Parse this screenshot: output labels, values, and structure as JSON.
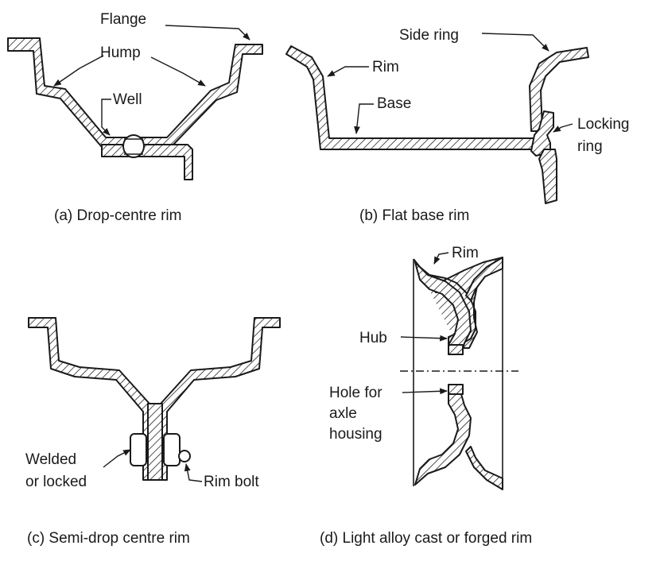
{
  "panels": {
    "a": {
      "caption": "(a) Drop-centre rim",
      "labels": {
        "flange": "Flange",
        "hump": "Hump",
        "well": "Well"
      }
    },
    "b": {
      "caption": "(b) Flat base rim",
      "labels": {
        "side_ring": "Side ring",
        "rim": "Rim",
        "base": "Base",
        "locking_1": "Locking",
        "locking_2": "ring"
      }
    },
    "c": {
      "caption": "(c) Semi-drop centre rim",
      "labels": {
        "welded": "Welded",
        "or_locked": "or locked",
        "rim_bolt": "Rim bolt"
      }
    },
    "d": {
      "caption": "(d) Light alloy cast or forged rim",
      "labels": {
        "rim": "Rim",
        "hub": "Hub",
        "hole_1": "Hole for",
        "hole_2": "axle",
        "hole_3": "housing"
      }
    }
  },
  "colors": {
    "ink": "#1a1a1a",
    "paper": "#ffffff"
  }
}
